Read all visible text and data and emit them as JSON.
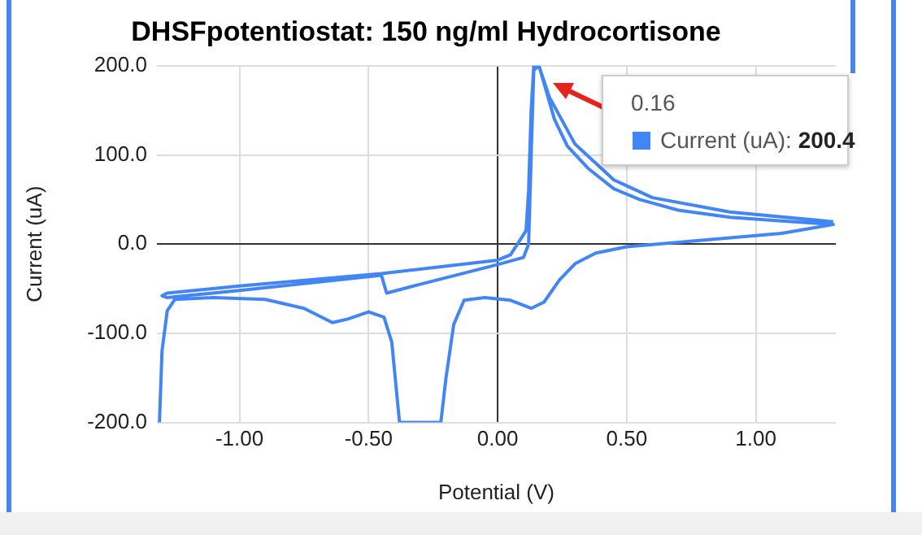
{
  "chart_data": {
    "type": "line",
    "title": "DHSFpotentiostat: 150 ng/ml Hydrocortisone",
    "xlabel": "Potential (V)",
    "ylabel": "Current (uA)",
    "xlim": [
      -1.32,
      1.31
    ],
    "ylim": [
      -200,
      200
    ],
    "xticks": [
      {
        "value": -1,
        "label": "-1.00"
      },
      {
        "value": -0.5,
        "label": "-0.50"
      },
      {
        "value": 0,
        "label": "0.00"
      },
      {
        "value": 0.5,
        "label": "0.50"
      },
      {
        "value": 1,
        "label": "1.00"
      }
    ],
    "yticks": [
      {
        "value": -200,
        "label": "-200.0"
      },
      {
        "value": -100,
        "label": "-100.0"
      },
      {
        "value": 0,
        "label": "0.0"
      },
      {
        "value": 100,
        "label": "100.0"
      },
      {
        "value": 200,
        "label": "200.0"
      }
    ],
    "grid": true,
    "legend": false,
    "marker": "none",
    "line_style": "solid",
    "series": [
      {
        "color": "#4285f4",
        "x": [
          -1.31,
          -1.3,
          -1.28,
          -1.25,
          -1.1,
          -0.9,
          -0.75,
          -0.64,
          -0.58,
          -0.5,
          -0.44,
          -0.41,
          -0.38,
          -0.22,
          -0.2,
          -0.17,
          -0.13,
          -0.05,
          0.05,
          0.13,
          0.18,
          0.24,
          0.3,
          0.38,
          0.5,
          0.7,
          0.9,
          1.1,
          1.3,
          1.1,
          0.9,
          0.7,
          0.55,
          0.45,
          0.35,
          0.27,
          0.22,
          0.19,
          0.16,
          0.14,
          0.13,
          0.12,
          0.11,
          0.05,
          0,
          -0.45,
          -1,
          -1.28,
          -1.3,
          -1.28,
          -1,
          -0.45,
          -0.43,
          -0.3,
          0,
          0.1,
          0.12,
          0.13,
          0.14,
          0.16,
          0.2,
          0.3,
          0.45,
          0.6,
          0.9,
          1.3
        ],
        "values": [
          -200,
          -120,
          -75,
          -62,
          -60,
          -62,
          -72,
          -88,
          -84,
          -76,
          -82,
          -110,
          -200,
          -200,
          -150,
          -90,
          -63,
          -60,
          -63,
          -72,
          -65,
          -40,
          -22,
          -10,
          -3,
          2,
          7,
          12,
          22,
          26,
          30,
          38,
          50,
          62,
          85,
          110,
          140,
          170,
          200,
          200,
          150,
          60,
          15,
          -12,
          -18,
          -33,
          -47,
          -55,
          -58,
          -60,
          -52,
          -35,
          -55,
          -45,
          -23,
          -15,
          0,
          100,
          195,
          200,
          165,
          112,
          72,
          52,
          36,
          25
        ]
      }
    ],
    "annotations": [
      "0.16",
      "Current (uA): 200.4"
    ]
  }
}
